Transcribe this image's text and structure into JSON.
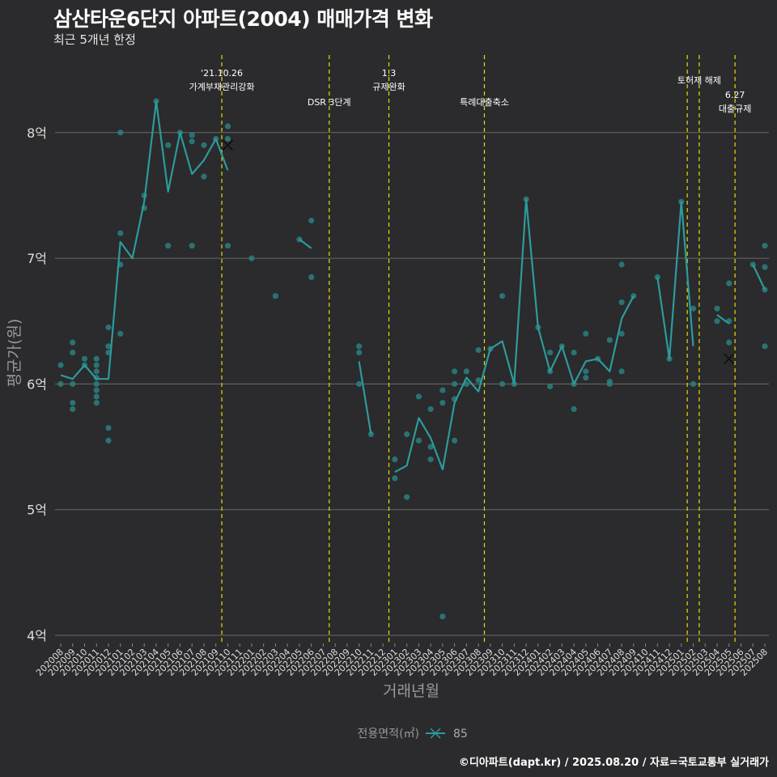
{
  "title": "삼산타운6단지 아파트(2004) 매매가격 변화",
  "subtitle": "최근 5개년 한정",
  "credit": "©디아파트(dapt.kr) / 2025.08.20 / 자료=국토교통부 실거래가",
  "colors": {
    "background": "#2b2a2c",
    "line": "#2c9b9b",
    "point": "#2a8080",
    "vline": "#e0e000",
    "grid": "#6a6a6a"
  },
  "chart_data": {
    "type": "line",
    "xlabel": "거래년월",
    "ylabel": "평균가(원)",
    "ylim": [
      4,
      8.8
    ],
    "yticks": [
      {
        "value": 4,
        "label": "4억"
      },
      {
        "value": 5,
        "label": "5억"
      },
      {
        "value": 6,
        "label": "6억"
      },
      {
        "value": 7,
        "label": "7억"
      },
      {
        "value": 8,
        "label": "8억"
      }
    ],
    "categories": [
      "202008",
      "202009",
      "202010",
      "202011",
      "202012",
      "202101",
      "202102",
      "202103",
      "202104",
      "202105",
      "202106",
      "202107",
      "202108",
      "202109",
      "202110",
      "202111",
      "202201",
      "202202",
      "202203",
      "202204",
      "202205",
      "202206",
      "202207",
      "202208",
      "202209",
      "202210",
      "202211",
      "202212",
      "202301",
      "202302",
      "202303",
      "202304",
      "202305",
      "202306",
      "202307",
      "202308",
      "202309",
      "202310",
      "202311",
      "202312",
      "202401",
      "202402",
      "202403",
      "202404",
      "202405",
      "202406",
      "202407",
      "202408",
      "202409",
      "202410",
      "202411",
      "202412",
      "202501",
      "202502",
      "202503",
      "202504",
      "202505",
      "202506",
      "202507",
      "202508"
    ],
    "x_positions": [
      1,
      2,
      3,
      4,
      5,
      6,
      7,
      8,
      9,
      10,
      11,
      12,
      13,
      14,
      15,
      16,
      17,
      18,
      19,
      20,
      21,
      22,
      23,
      24,
      25,
      26,
      27,
      28,
      29,
      30,
      31,
      32,
      33,
      34,
      35,
      36,
      37,
      38,
      39,
      40,
      41,
      42,
      43,
      44,
      45,
      46,
      47,
      48,
      49,
      50,
      51,
      52,
      53,
      54,
      55,
      56,
      57,
      58,
      59,
      60
    ],
    "legend": {
      "title": "전용면적(㎡)",
      "label": "85",
      "position": "bottom"
    },
    "series": [
      {
        "name": "85",
        "segments": [
          [
            [
              1,
              6.07
            ],
            [
              2,
              6.04
            ],
            [
              3,
              6.15
            ],
            [
              4,
              6.04
            ],
            [
              5,
              6.04
            ],
            [
              6,
              7.13
            ],
            [
              7,
              7.0
            ],
            [
              8,
              7.45
            ],
            [
              9,
              8.25
            ],
            [
              10,
              7.53
            ],
            [
              11,
              8.0
            ],
            [
              12,
              7.67
            ],
            [
              13,
              7.78
            ],
            [
              14,
              7.95
            ],
            [
              15,
              7.7
            ]
          ],
          [
            [
              21,
              7.15
            ],
            [
              22,
              7.08
            ]
          ],
          [
            [
              26,
              6.18
            ],
            [
              27,
              5.6
            ]
          ],
          [
            [
              29,
              5.3
            ],
            [
              30,
              5.35
            ],
            [
              31,
              5.73
            ],
            [
              32,
              5.57
            ],
            [
              33,
              5.32
            ],
            [
              34,
              5.85
            ],
            [
              35,
              6.05
            ],
            [
              36,
              5.94
            ],
            [
              37,
              6.28
            ],
            [
              38,
              6.34
            ],
            [
              39,
              6.0
            ],
            [
              40,
              7.47
            ],
            [
              41,
              6.45
            ],
            [
              42,
              6.1
            ],
            [
              43,
              6.3
            ],
            [
              44,
              6.0
            ],
            [
              45,
              6.18
            ],
            [
              46,
              6.2
            ],
            [
              47,
              6.1
            ],
            [
              48,
              6.52
            ],
            [
              49,
              6.7
            ]
          ],
          [
            [
              51,
              6.85
            ],
            [
              52,
              6.2
            ],
            [
              53,
              7.45
            ],
            [
              54,
              6.3
            ]
          ],
          [
            [
              56,
              6.55
            ],
            [
              57,
              6.48
            ]
          ],
          [
            [
              59,
              6.95
            ],
            [
              60,
              6.75
            ]
          ]
        ],
        "crosses": [
          [
            15,
            7.9
          ],
          [
            57,
            6.2
          ]
        ]
      }
    ],
    "points": [
      [
        1,
        6.15
      ],
      [
        1,
        6.0
      ],
      [
        2,
        6.33
      ],
      [
        2,
        6.25
      ],
      [
        2,
        6.0
      ],
      [
        2,
        5.85
      ],
      [
        2,
        5.8
      ],
      [
        3,
        6.2
      ],
      [
        3,
        6.15
      ],
      [
        4,
        6.2
      ],
      [
        4,
        6.15
      ],
      [
        4,
        6.1
      ],
      [
        4,
        6.05
      ],
      [
        4,
        6.0
      ],
      [
        4,
        5.95
      ],
      [
        4,
        5.9
      ],
      [
        4,
        5.85
      ],
      [
        5,
        6.45
      ],
      [
        5,
        6.3
      ],
      [
        5,
        6.25
      ],
      [
        5,
        5.65
      ],
      [
        5,
        5.55
      ],
      [
        6,
        8.0
      ],
      [
        6,
        7.2
      ],
      [
        6,
        6.95
      ],
      [
        6,
        6.4
      ],
      [
        8,
        7.5
      ],
      [
        8,
        7.4
      ],
      [
        9,
        8.25
      ],
      [
        10,
        7.9
      ],
      [
        10,
        7.1
      ],
      [
        11,
        8.0
      ],
      [
        12,
        7.98
      ],
      [
        12,
        7.93
      ],
      [
        12,
        7.1
      ],
      [
        13,
        7.9
      ],
      [
        13,
        7.65
      ],
      [
        14,
        7.95
      ],
      [
        15,
        8.05
      ],
      [
        15,
        7.95
      ],
      [
        15,
        7.1
      ],
      [
        17,
        7.0
      ],
      [
        19,
        6.7
      ],
      [
        21,
        7.15
      ],
      [
        22,
        7.3
      ],
      [
        22,
        6.85
      ],
      [
        26,
        6.3
      ],
      [
        26,
        6.25
      ],
      [
        26,
        6.0
      ],
      [
        27,
        5.6
      ],
      [
        29,
        5.4
      ],
      [
        29,
        5.25
      ],
      [
        30,
        5.6
      ],
      [
        30,
        5.1
      ],
      [
        31,
        5.9
      ],
      [
        31,
        5.55
      ],
      [
        32,
        5.8
      ],
      [
        32,
        5.5
      ],
      [
        32,
        5.4
      ],
      [
        33,
        5.95
      ],
      [
        33,
        5.85
      ],
      [
        33,
        4.15
      ],
      [
        34,
        6.1
      ],
      [
        34,
        6.0
      ],
      [
        34,
        5.88
      ],
      [
        34,
        5.55
      ],
      [
        35,
        6.1
      ],
      [
        35,
        6.0
      ],
      [
        36,
        6.27
      ],
      [
        36,
        6.03
      ],
      [
        37,
        6.28
      ],
      [
        38,
        6.7
      ],
      [
        38,
        6.0
      ],
      [
        39,
        6.0
      ],
      [
        40,
        7.47
      ],
      [
        41,
        6.45
      ],
      [
        42,
        6.25
      ],
      [
        42,
        6.1
      ],
      [
        42,
        5.98
      ],
      [
        43,
        6.3
      ],
      [
        44,
        6.25
      ],
      [
        44,
        6.0
      ],
      [
        44,
        5.8
      ],
      [
        45,
        6.4
      ],
      [
        45,
        6.1
      ],
      [
        45,
        6.05
      ],
      [
        46,
        6.2
      ],
      [
        47,
        6.35
      ],
      [
        47,
        6.02
      ],
      [
        47,
        6.0
      ],
      [
        48,
        6.95
      ],
      [
        48,
        6.65
      ],
      [
        48,
        6.4
      ],
      [
        48,
        6.1
      ],
      [
        49,
        6.7
      ],
      [
        51,
        6.85
      ],
      [
        52,
        6.2
      ],
      [
        53,
        7.45
      ],
      [
        54,
        6.6
      ],
      [
        54,
        6.0
      ],
      [
        56,
        6.6
      ],
      [
        56,
        6.5
      ],
      [
        57,
        6.8
      ],
      [
        57,
        6.5
      ],
      [
        57,
        6.33
      ],
      [
        59,
        6.95
      ],
      [
        60,
        7.1
      ],
      [
        60,
        6.93
      ],
      [
        60,
        6.75
      ],
      [
        60,
        6.3
      ]
    ],
    "events": [
      {
        "x": 14.5,
        "lines": [
          "'21.10.26",
          "가계부채관리강화"
        ],
        "row": "high"
      },
      {
        "x": 23.5,
        "lines": [
          "DSR 3단계"
        ],
        "row": "low"
      },
      {
        "x": 28.5,
        "lines": [
          "1.3",
          "규제완화"
        ],
        "row": "high"
      },
      {
        "x": 36.5,
        "lines": [
          "특례대출축소"
        ],
        "row": "low"
      },
      {
        "x": 53.5,
        "lines": [],
        "row": "none"
      },
      {
        "x": 54.5,
        "lines": [
          "토허제 해제"
        ],
        "row": "mid"
      },
      {
        "x": 57.5,
        "lines": [
          "6.27",
          "대출규제"
        ],
        "row": "low2"
      }
    ]
  }
}
